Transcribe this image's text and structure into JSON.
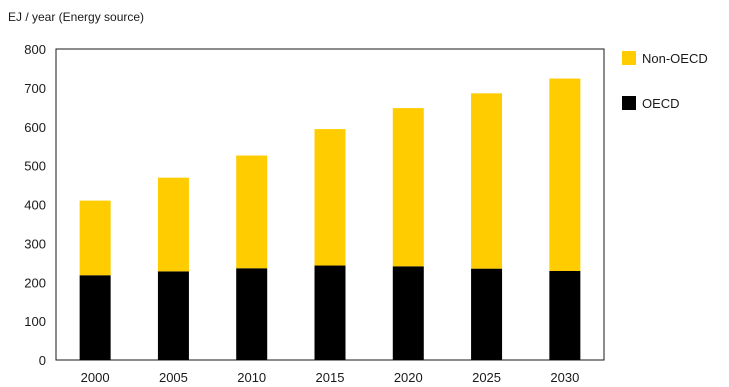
{
  "chart_data": {
    "type": "bar",
    "stacked": true,
    "title": "",
    "ylabel": "EJ / year  (Energy source)",
    "xlabel": "",
    "categories": [
      "2000",
      "2005",
      "2010",
      "2015",
      "2020",
      "2025",
      "2030"
    ],
    "series": [
      {
        "name": "OECD",
        "color": "#000000",
        "values": [
          218,
          228,
          236,
          243,
          241,
          235,
          229
        ]
      },
      {
        "name": "Non-OECD",
        "color": "#FFCC00",
        "values": [
          192,
          241,
          290,
          351,
          407,
          451,
          495
        ]
      }
    ],
    "ylim": [
      0,
      800
    ],
    "yticks": [
      "0",
      "100",
      "200",
      "300",
      "400",
      "500",
      "600",
      "700",
      "800"
    ],
    "legend_order": [
      "Non-OECD",
      "OECD"
    ],
    "legend_position": "top-right",
    "grid": false
  }
}
